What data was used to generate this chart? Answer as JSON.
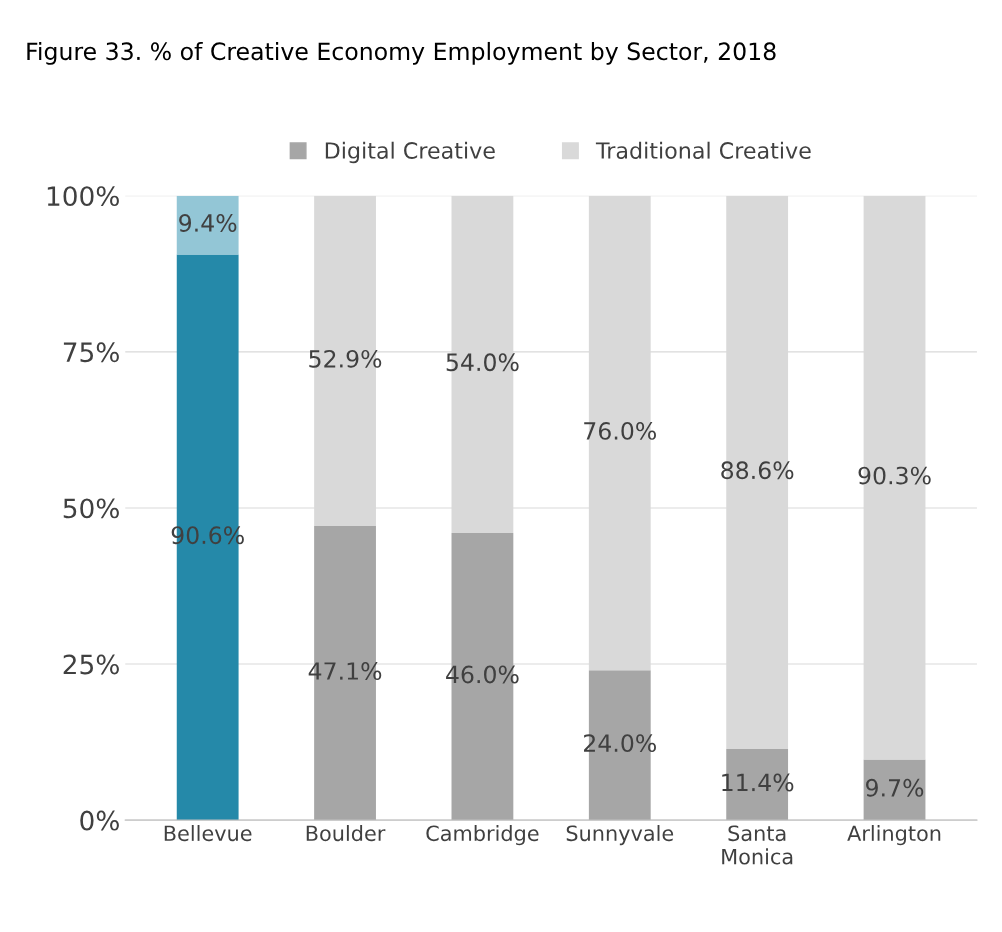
{
  "chart_data": {
    "type": "bar",
    "title": "Figure 33. % of Creative Economy Employment by Sector, 2018",
    "categories": [
      "Bellevue",
      "Boulder",
      "Cambridge",
      "Sunnyvale",
      "Santa\nMonica",
      "Arlington"
    ],
    "stacked": true,
    "series": [
      {
        "name": "Digital Creative",
        "color": "#a6a6a6",
        "colors": [
          "#2589a9",
          "#a6a6a6",
          "#a6a6a6",
          "#a6a6a6",
          "#a6a6a6",
          "#a6a6a6"
        ],
        "values": [
          90.6,
          47.1,
          46.0,
          24.0,
          11.4,
          9.7
        ],
        "value_labels": [
          "90.6%",
          "47.1%",
          "46.0%",
          "24.0%",
          "11.4%",
          "9.7%"
        ]
      },
      {
        "name": "Traditional Creative",
        "color": "#d9d9d9",
        "colors": [
          "#93c6d6",
          "#d9d9d9",
          "#d9d9d9",
          "#d9d9d9",
          "#d9d9d9",
          "#d9d9d9"
        ],
        "values": [
          9.4,
          52.9,
          54.0,
          76.0,
          88.6,
          90.3
        ],
        "value_labels": [
          "9.4%",
          "52.9%",
          "54.0%",
          "76.0%",
          "88.6%",
          "90.3%"
        ]
      }
    ],
    "ylim": [
      0,
      100
    ],
    "yticks": [
      {
        "value": 0,
        "label": "0%"
      },
      {
        "value": 25,
        "label": "25%"
      },
      {
        "value": 50,
        "label": "50%"
      },
      {
        "value": 75,
        "label": "75%"
      },
      {
        "value": 100,
        "label": "100%"
      }
    ],
    "grid": "y",
    "legend": "top"
  }
}
